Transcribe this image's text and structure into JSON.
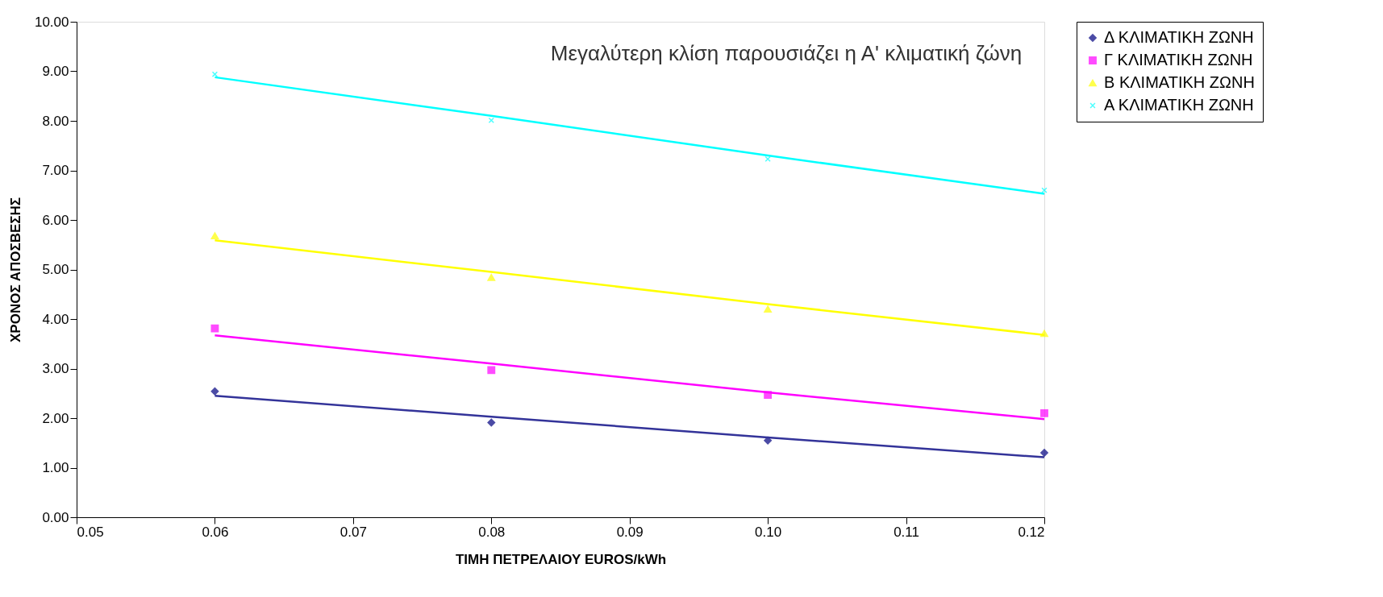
{
  "chart_data": {
    "type": "scatter",
    "xlabel": "ΤΙΜΗ ΠΕΤΡΕΛΑΙΟΥ EUROS/kWh",
    "ylabel": "ΧΡΟΝΟΣ ΑΠΟΣΒΕΣΗΣ",
    "annotations": [
      "Μεγαλύτερη κλίση παρουσιάζει η Α' κλιματική ζώνη"
    ],
    "x": [
      0.06,
      0.08,
      0.1,
      0.12
    ],
    "series": [
      {
        "name": "Δ ΚΛΙΜΑΤΙΚΗ ΖΩΝΗ",
        "color": "#000080",
        "marker": "diamond",
        "values": [
          2.54,
          1.91,
          1.55,
          1.3
        ]
      },
      {
        "name": "Γ ΚΛΙΜΑΤΙΚΗ ΖΩΝΗ",
        "color": "#ff00ff",
        "marker": "square",
        "values": [
          3.81,
          2.97,
          2.47,
          2.1
        ]
      },
      {
        "name": "Β ΚΛΙΜΑΤΙΚΗ ΖΩΝΗ",
        "color": "#ffff00",
        "marker": "triangle",
        "values": [
          5.68,
          4.84,
          4.2,
          3.71
        ]
      },
      {
        "name": "Α ΚΛΙΜΑΤΙΚΗ ΖΩΝΗ",
        "color": "#00ffff",
        "marker": "cross",
        "values": [
          8.94,
          8.01,
          7.23,
          6.6
        ]
      },
      {
        "type": "line",
        "color": "#333399",
        "values": [
          2.45,
          2.03,
          1.61,
          1.21
        ]
      },
      {
        "type": "line",
        "color": "#ff00ff",
        "values": [
          3.67,
          3.1,
          2.52,
          1.98
        ]
      },
      {
        "type": "line",
        "color": "#ffff00",
        "values": [
          5.59,
          4.95,
          4.3,
          3.68
        ]
      },
      {
        "type": "line",
        "color": "#00ffff",
        "values": [
          8.88,
          8.1,
          7.3,
          6.53
        ]
      }
    ],
    "xlim": [
      0.05,
      0.12
    ],
    "xticks": [
      0.05,
      0.06,
      0.07,
      0.08,
      0.09,
      {
        "value": 0.1,
        "label": "0.10"
      },
      0.11,
      0.12
    ],
    "ylim": [
      0,
      10
    ],
    "yticks": [
      {
        "value": 0,
        "label": "0.00"
      },
      {
        "value": 1,
        "label": "1.00"
      },
      {
        "value": 2,
        "label": "2.00"
      },
      {
        "value": 3,
        "label": "3.00"
      },
      {
        "value": 4,
        "label": "4.00"
      },
      {
        "value": 5,
        "label": "5.00"
      },
      {
        "value": 6,
        "label": "6.00"
      },
      {
        "value": 7,
        "label": "7.00"
      },
      {
        "value": 8,
        "label": "8.00"
      },
      {
        "value": 9,
        "label": "9.00"
      },
      {
        "value": 10,
        "label": "10.00"
      }
    ],
    "grid": false,
    "legend": "right"
  }
}
